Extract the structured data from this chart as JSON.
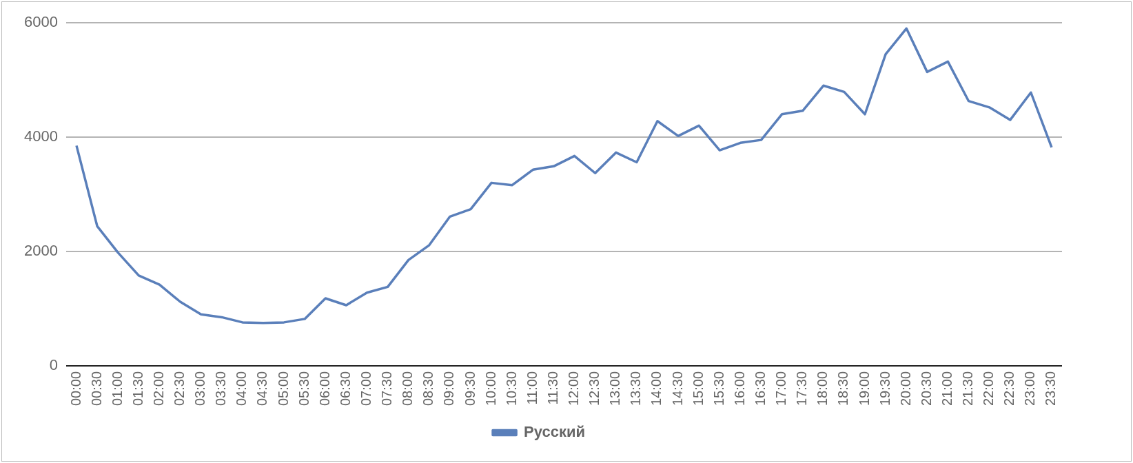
{
  "chart_data": {
    "type": "line",
    "categories": [
      "00:00",
      "00:30",
      "01:00",
      "01:30",
      "02:00",
      "02:30",
      "03:00",
      "03:30",
      "04:00",
      "04:30",
      "05:00",
      "05:30",
      "06:00",
      "06:30",
      "07:00",
      "07:30",
      "08:00",
      "08:30",
      "09:00",
      "09:30",
      "10:00",
      "10:30",
      "11:00",
      "11:30",
      "12:00",
      "12:30",
      "13:00",
      "13:30",
      "14:00",
      "14:30",
      "15:00",
      "15:30",
      "16:00",
      "16:30",
      "17:00",
      "17:30",
      "18:00",
      "18:30",
      "19:00",
      "19:30",
      "20:00",
      "20:30",
      "21:00",
      "21:30",
      "22:00",
      "22:30",
      "23:00",
      "23:30"
    ],
    "series": [
      {
        "name": "Русский",
        "color": "#5a7fba",
        "values": [
          3850,
          2440,
          1980,
          1580,
          1420,
          1120,
          900,
          850,
          760,
          750,
          760,
          820,
          1180,
          1060,
          1280,
          1380,
          1850,
          2110,
          2610,
          2740,
          3200,
          3160,
          3430,
          3490,
          3670,
          3370,
          3730,
          3560,
          4280,
          4020,
          4200,
          3770,
          3900,
          3950,
          4400,
          4460,
          4900,
          4790,
          4400,
          5450,
          5900,
          5140,
          5320,
          4630,
          4520,
          4300,
          4780,
          3820
        ]
      }
    ],
    "ylim": [
      0,
      6000
    ],
    "yticks": [
      0,
      2000,
      4000,
      6000
    ],
    "grid": "y",
    "legend": "bottom",
    "marker": "none",
    "line_style": "solid"
  }
}
